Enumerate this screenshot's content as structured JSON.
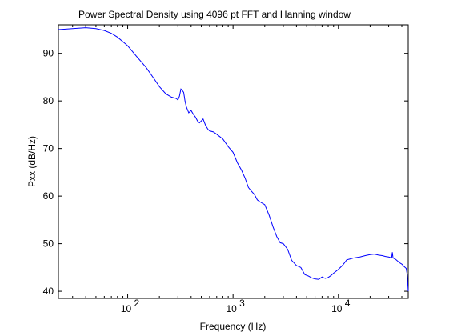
{
  "chart_data": {
    "type": "line",
    "title": "Power Spectral Density using 4096 pt FFT and Hanning window",
    "xlabel": "Frequency (Hz)",
    "ylabel": "Pxx (dB/Hz)",
    "x_scale": "log",
    "xlim": [
      22,
      46000
    ],
    "ylim": [
      38.5,
      96
    ],
    "xticks": [
      {
        "value": 100,
        "base": "10",
        "exp": "2"
      },
      {
        "value": 1000,
        "base": "10",
        "exp": "3"
      },
      {
        "value": 10000,
        "base": "10",
        "exp": "4"
      }
    ],
    "yticks": [
      40,
      50,
      60,
      70,
      80,
      90
    ],
    "grid": false,
    "legend": "none",
    "colors": {
      "line": "#0000ff",
      "axes": "#000000",
      "background": "#ffffff"
    },
    "series": [
      {
        "x": [
          22,
          30,
          40,
          50,
          60,
          70,
          80,
          100,
          120,
          150,
          180,
          200,
          230,
          260,
          290,
          300,
          310,
          320,
          330,
          340,
          350,
          360,
          380,
          400,
          420,
          440,
          460,
          480,
          500,
          520,
          550,
          580,
          600,
          650,
          700,
          800,
          900,
          1000,
          1100,
          1200,
          1300,
          1400,
          1500,
          1600,
          1700,
          1800,
          2000,
          2200,
          2400,
          2600,
          2800,
          3000,
          3300,
          3600,
          4000,
          4400,
          4800,
          5200,
          5600,
          6000,
          6500,
          7000,
          7500,
          8000,
          8500,
          9000,
          10000,
          11000,
          12000,
          13000,
          14000,
          16000,
          18000,
          20000,
          22000,
          24000,
          26000,
          28000,
          30000,
          32000,
          32500,
          33000,
          35000,
          38000,
          40000,
          42000,
          44000,
          45000,
          46000
        ],
        "y": [
          95.0,
          95.2,
          95.4,
          95.2,
          94.8,
          94.2,
          93.4,
          91.6,
          89.5,
          87.0,
          84.5,
          83.0,
          81.5,
          80.8,
          80.5,
          80.2,
          81.0,
          82.5,
          82.2,
          81.8,
          80.0,
          78.8,
          77.5,
          78.0,
          77.2,
          76.6,
          75.8,
          75.4,
          75.8,
          76.2,
          74.8,
          74.0,
          73.7,
          73.5,
          73.0,
          72.0,
          70.4,
          69.2,
          67.0,
          65.5,
          63.8,
          61.8,
          61.0,
          60.3,
          59.2,
          58.8,
          58.2,
          56.0,
          53.5,
          51.5,
          50.2,
          50.0,
          48.8,
          46.5,
          45.4,
          45.0,
          43.5,
          43.2,
          42.8,
          42.6,
          42.5,
          43.0,
          42.7,
          42.9,
          43.3,
          43.8,
          44.6,
          45.5,
          46.6,
          46.8,
          47.0,
          47.2,
          47.5,
          47.7,
          47.8,
          47.6,
          47.5,
          47.3,
          47.2,
          47.0,
          48.2,
          47.0,
          46.7,
          46.0,
          45.7,
          45.2,
          44.8,
          43.5,
          40.0
        ]
      }
    ]
  }
}
